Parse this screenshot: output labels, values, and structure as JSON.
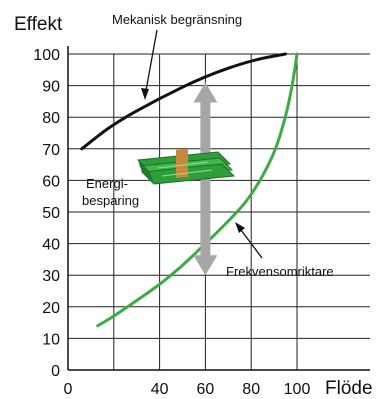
{
  "chart_data": {
    "type": "line",
    "ylabel": "Effekt",
    "xlabel": "Flöde",
    "xlim": [
      0,
      100
    ],
    "ylim": [
      0,
      100
    ],
    "x_ticks": [
      0,
      20,
      40,
      60,
      80,
      100
    ],
    "x_tick_labels": [
      "0",
      "",
      "40",
      "60",
      "80",
      "100"
    ],
    "y_ticks": [
      0,
      10,
      20,
      30,
      40,
      50,
      60,
      70,
      80,
      90,
      100
    ],
    "y_tick_labels": [
      "0",
      "10",
      "20",
      "30",
      "40",
      "50",
      "60",
      "70",
      "80",
      "90",
      "100"
    ],
    "grid": true,
    "series": [
      {
        "name": "Mekanisk begränsning",
        "color": "#111111",
        "points": [
          [
            6,
            70
          ],
          [
            20,
            78
          ],
          [
            40,
            86
          ],
          [
            60,
            93
          ],
          [
            80,
            98
          ],
          [
            95,
            100
          ]
        ]
      },
      {
        "name": "Frekvensomriktare",
        "color": "#3daa46",
        "points": [
          [
            13,
            14
          ],
          [
            20,
            17
          ],
          [
            30,
            22
          ],
          [
            40,
            27
          ],
          [
            50,
            33
          ],
          [
            60,
            40
          ],
          [
            70,
            47
          ],
          [
            80,
            55
          ],
          [
            90,
            68
          ],
          [
            95,
            80
          ],
          [
            98,
            90
          ],
          [
            100,
            100
          ]
        ]
      }
    ],
    "annotations": {
      "saving_label_line1": "Energi-",
      "saving_label_line2": "besparing",
      "saving_arrow": {
        "x": 60,
        "from": 30,
        "to": 91,
        "color": "#a6a6a6"
      },
      "money_icon": "money-bundle-icon",
      "money_color": "#2e9e3a"
    }
  }
}
